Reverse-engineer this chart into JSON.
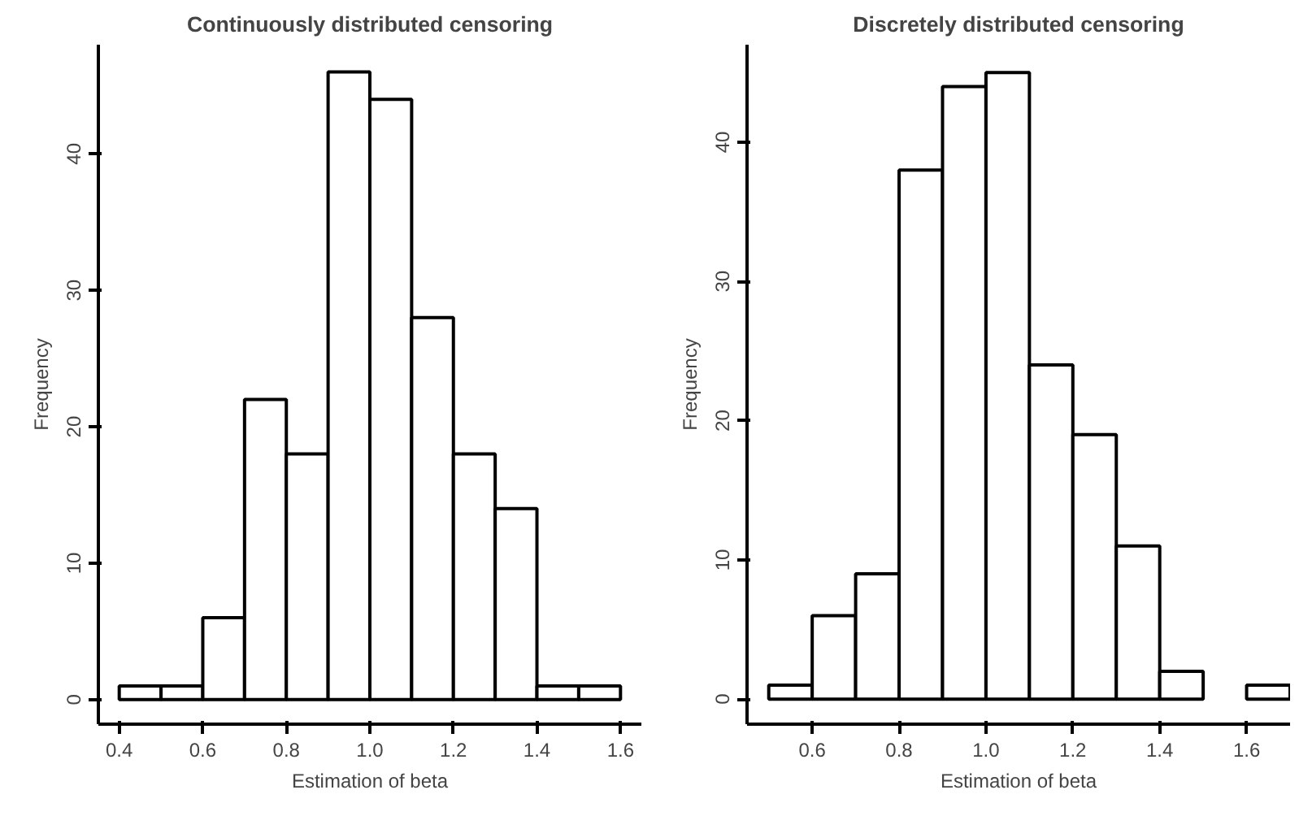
{
  "chart_data": [
    {
      "type": "histogram",
      "title": "Continuously distributed censoring",
      "xlabel": "Estimation of beta",
      "ylabel": "Frequency",
      "color": "#ffffff",
      "bins": [
        0.4,
        0.5,
        0.6,
        0.7,
        0.8,
        0.9,
        1.0,
        1.1,
        1.2,
        1.3,
        1.4,
        1.5,
        1.6
      ],
      "values": [
        1,
        1,
        6,
        22,
        18,
        46,
        44,
        28,
        18,
        14,
        1,
        1
      ],
      "xlim": [
        0.35,
        1.65
      ],
      "ylim": [
        -1.8,
        48
      ],
      "xticks": [
        0.4,
        0.6,
        0.8,
        {
          "value": 1,
          "label": "1.0"
        },
        1.2,
        1.4,
        1.6
      ],
      "yticks": [
        0,
        10,
        20,
        30,
        40
      ],
      "grid": false
    },
    {
      "type": "histogram",
      "title": "Discretely distributed censoring",
      "xlabel": "Estimation of beta",
      "ylabel": "Frequency",
      "color": "#ffffff",
      "bins": [
        0.5,
        0.6,
        0.7,
        0.8,
        0.9,
        1.0,
        1.1,
        1.2,
        1.3,
        1.4,
        1.5,
        1.6,
        1.7
      ],
      "values": [
        1,
        6,
        9,
        38,
        44,
        45,
        24,
        19,
        11,
        2,
        0,
        1
      ],
      "xlim": [
        0.45,
        1.7
      ],
      "ylim": [
        -1.8,
        47
      ],
      "xticks": [
        0.6,
        0.8,
        {
          "value": 1,
          "label": "1.0"
        },
        1.2,
        1.4,
        1.6
      ],
      "yticks": [
        0,
        10,
        20,
        30,
        40
      ],
      "grid": false
    }
  ]
}
